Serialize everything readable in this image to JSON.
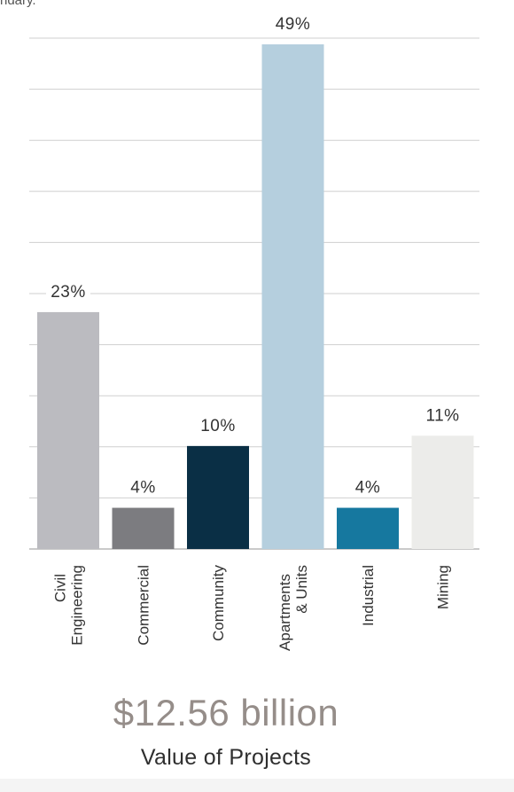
{
  "header": {
    "fragment_text": "ndary."
  },
  "chart_data": {
    "type": "bar",
    "categories": [
      [
        "Civil",
        "Engineering"
      ],
      [
        "Commercial"
      ],
      [
        "Community"
      ],
      [
        "Apartments",
        "& Units"
      ],
      [
        "Industrial"
      ],
      [
        "Mining"
      ]
    ],
    "values": [
      23,
      4,
      10,
      49,
      4,
      11
    ],
    "data_labels": [
      "23%",
      "4%",
      "10%",
      "49%",
      "4%",
      "11%"
    ],
    "colors": [
      "#bbbbc0",
      "#7c7c80",
      "#0a2f45",
      "#b5cfde",
      "#16789f",
      "#ececea"
    ],
    "ylim": [
      0,
      50
    ],
    "grid": true
  },
  "summary": {
    "value": "$12.56 billion",
    "label": "Value of Projects"
  }
}
